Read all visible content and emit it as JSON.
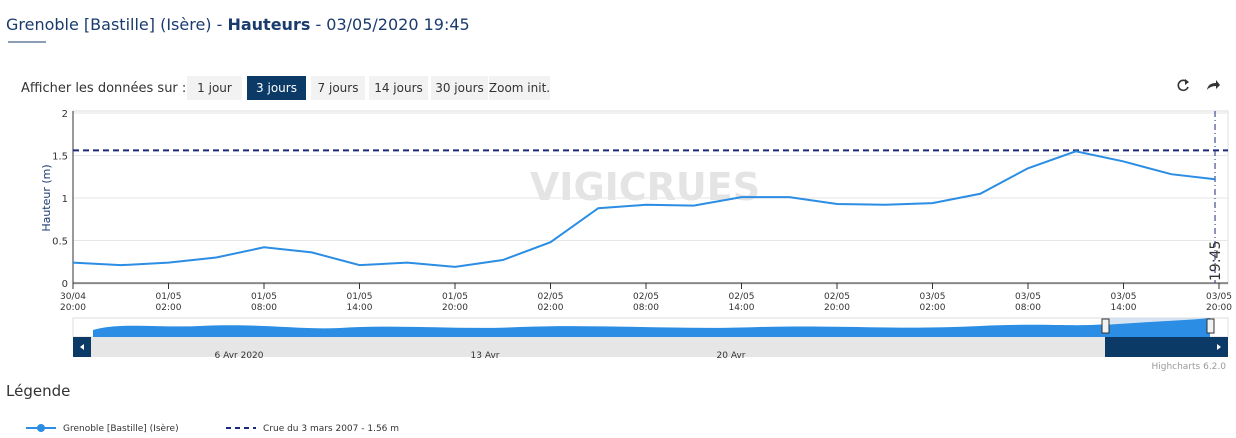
{
  "title_parts": [
    "Grenoble [Bastille] (Isère) - ",
    "Hauteurs",
    " - 03/05/2020 19:45"
  ],
  "controls": {
    "label": "Afficher les données sur :",
    "buttons": [
      "1 jour",
      "3 jours",
      "7 jours",
      "14 jours",
      "30 jours",
      "Zoom init."
    ],
    "selected": 1
  },
  "chart_data": {
    "type": "line",
    "y_label": "Hauteur (m)",
    "watermark": "VIGICRUES",
    "x": [
      "30/04 20:00",
      "30/04 23:00",
      "01/05 02:00",
      "01/05 05:00",
      "01/05 08:00",
      "01/05 11:00",
      "01/05 14:00",
      "01/05 17:00",
      "01/05 20:00",
      "01/05 23:00",
      "02/05 02:00",
      "02/05 05:00",
      "02/05 08:00",
      "02/05 11:00",
      "02/05 14:00",
      "02/05 17:00",
      "02/05 20:00",
      "02/05 23:00",
      "03/05 02:00",
      "03/05 05:00",
      "03/05 08:00",
      "03/05 11:00",
      "03/05 14:00",
      "03/05 17:00",
      "03/05 19:45"
    ],
    "series": [
      {
        "name": "Grenoble [Bastille] (Isère)",
        "color": "#2b8de3",
        "values": [
          0.24,
          0.21,
          0.24,
          0.3,
          0.42,
          0.36,
          0.21,
          0.24,
          0.19,
          0.27,
          0.48,
          0.88,
          0.92,
          0.91,
          1.01,
          1.01,
          0.93,
          0.92,
          0.94,
          1.05,
          1.35,
          1.55,
          1.43,
          1.28,
          1.22
        ]
      }
    ],
    "threshold": {
      "label": "Crue du 3 mars 2007 - 1.56 m",
      "value": 1.56,
      "color": "#1c2a7a"
    },
    "marker_label": "19:45",
    "xlim": [
      "30/04 20:00",
      "03/05 20:00"
    ],
    "xticks": [
      "30/04 20:00",
      "01/05 02:00",
      "01/05 08:00",
      "01/05 14:00",
      "01/05 20:00",
      "02/05 02:00",
      "02/05 08:00",
      "02/05 14:00",
      "02/05 20:00",
      "03/05 02:00",
      "03/05 08:00",
      "03/05 14:00",
      "03/05 20:00"
    ],
    "ylim": [
      0,
      2
    ],
    "yticks": [
      0,
      0.5,
      1,
      1.5,
      2
    ],
    "grid": true
  },
  "navigator": {
    "labels": [
      "6 Avr 2020",
      "13 Avr",
      "20 Avr"
    ]
  },
  "credits": "Highcharts 6.2.0",
  "legend_title": "Légende"
}
